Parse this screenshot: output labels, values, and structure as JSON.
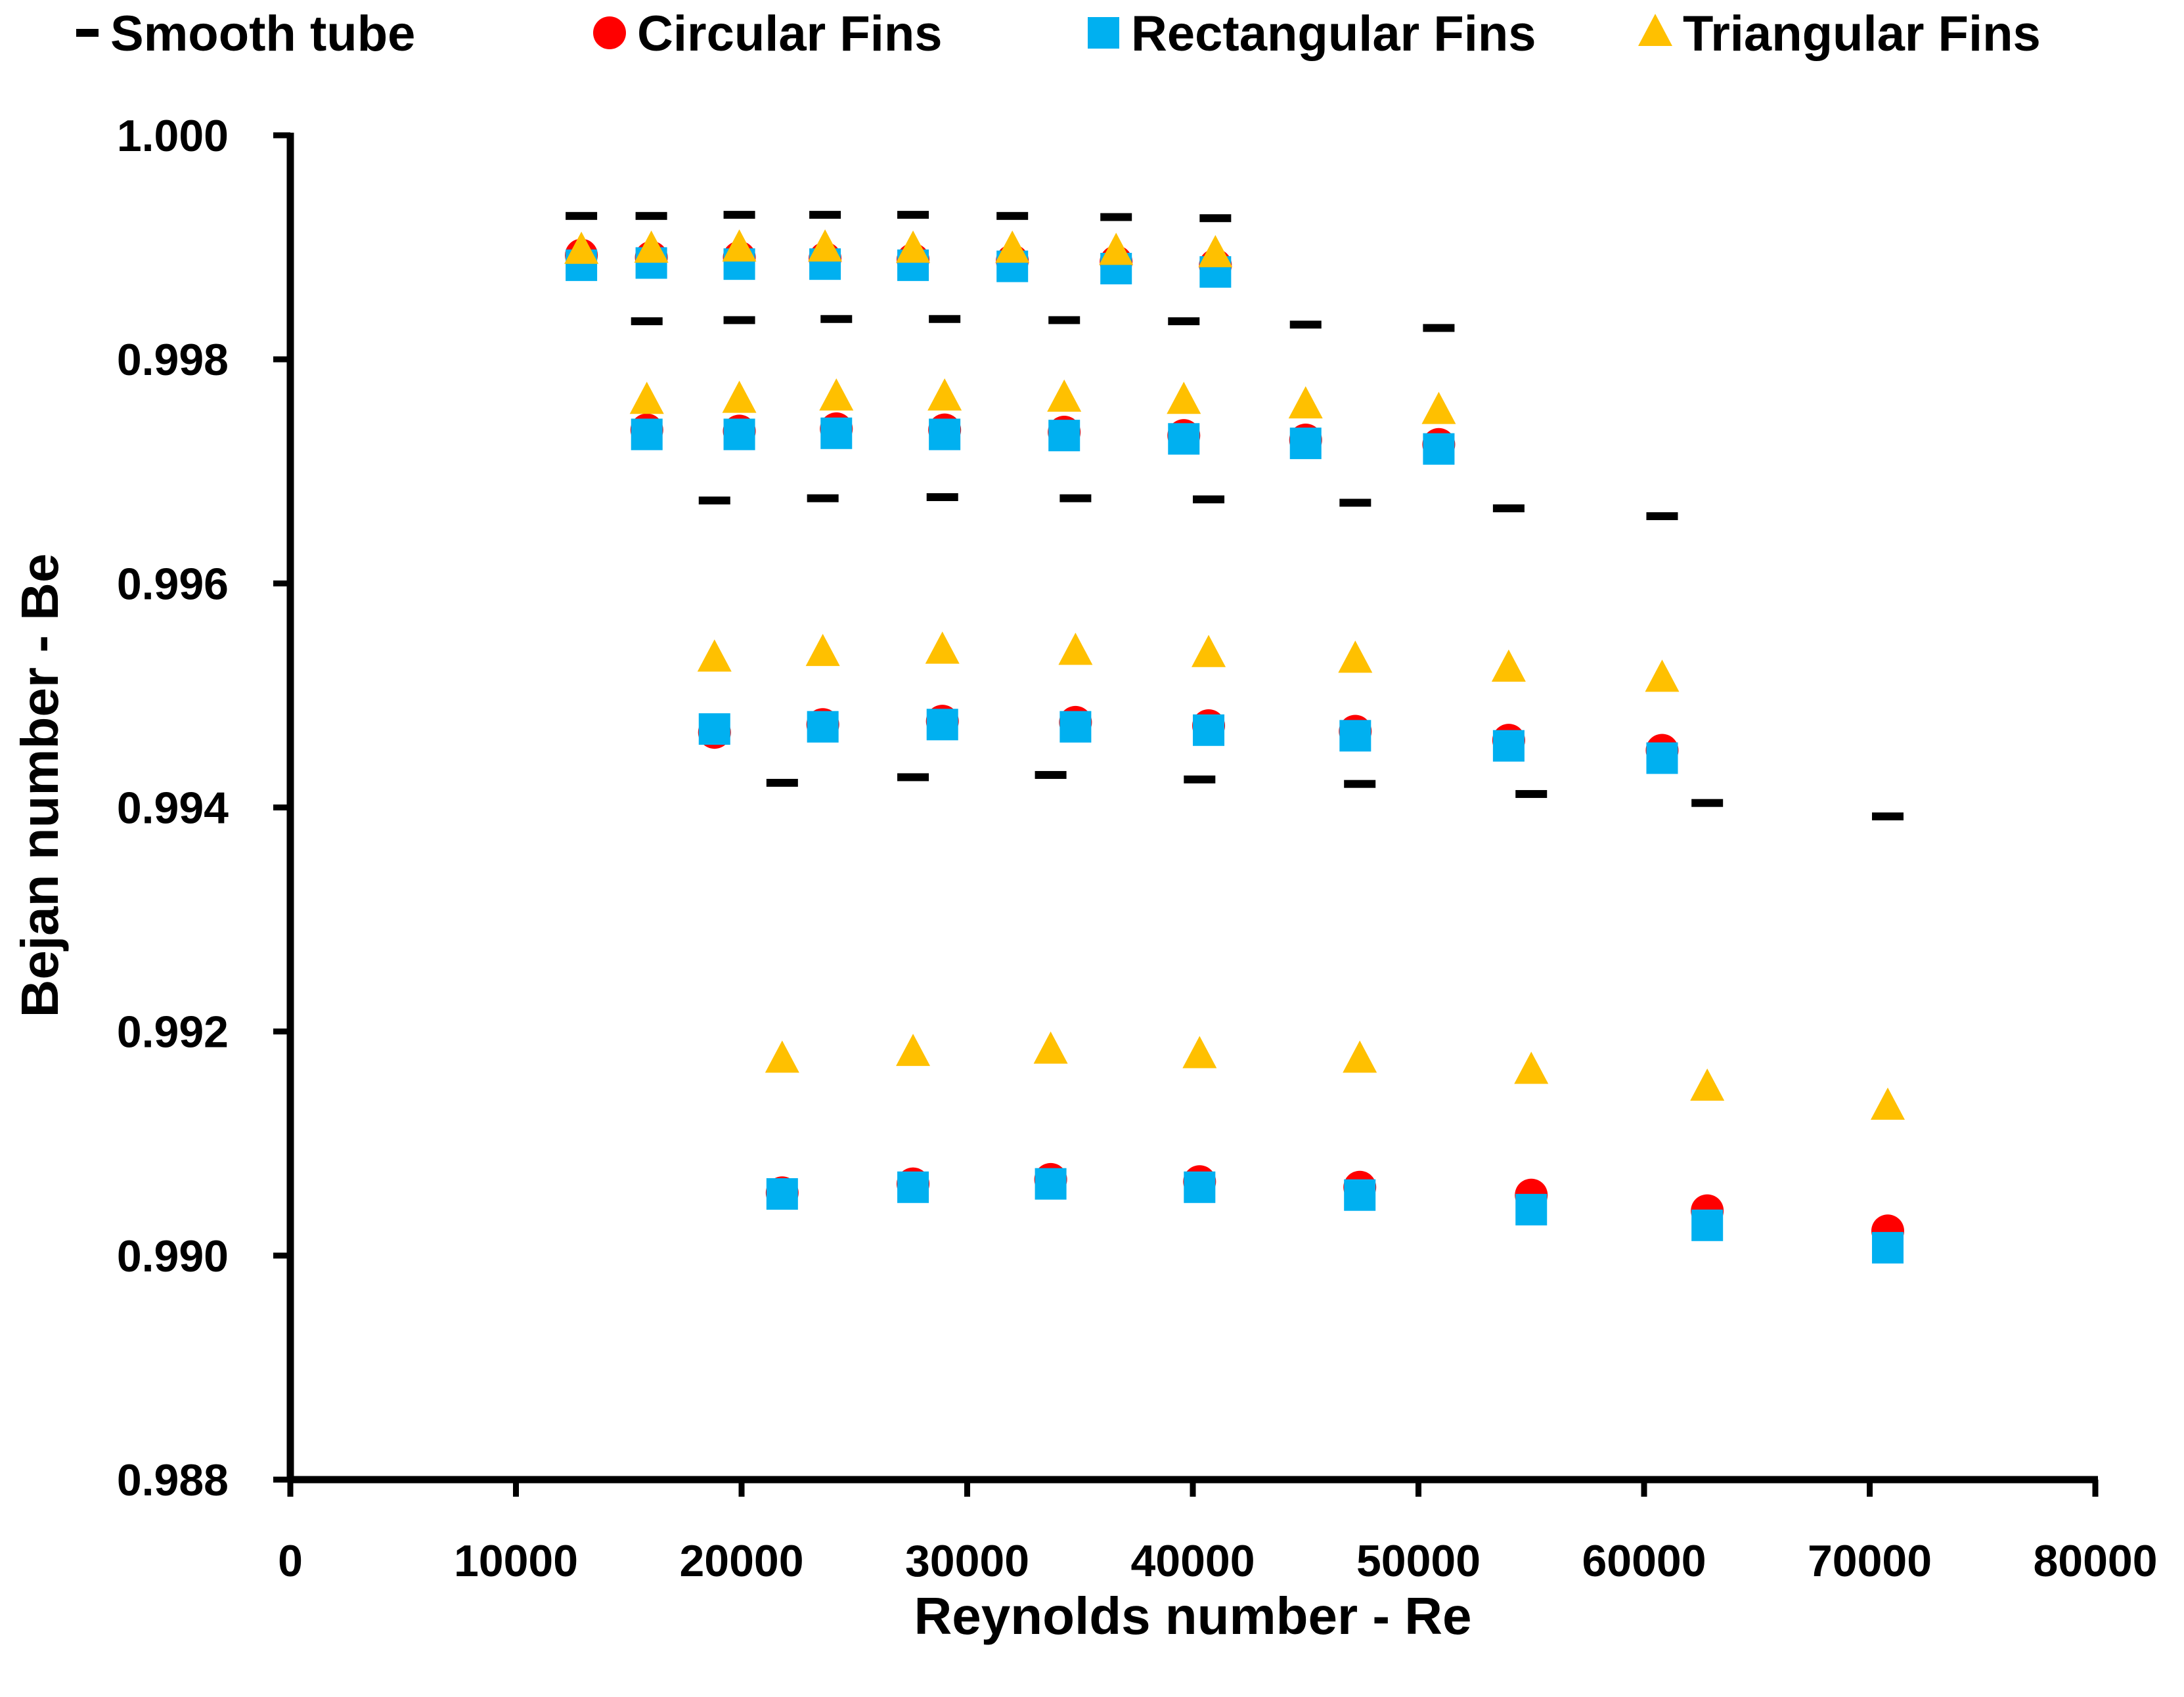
{
  "chart_data": {
    "type": "scatter",
    "title": "",
    "xlabel": "Reynolds number - Re",
    "ylabel": "Bejan number - Be",
    "xlim": [
      0,
      80000
    ],
    "ylim": [
      0.988,
      1.0
    ],
    "xticks": [
      0,
      10000,
      20000,
      30000,
      40000,
      50000,
      60000,
      70000,
      80000
    ],
    "xtick_labels": [
      "0",
      "10000",
      "20000",
      "30000",
      "40000",
      "50000",
      "60000",
      "70000",
      "80000"
    ],
    "yticks": [
      0.988,
      0.99,
      0.992,
      0.994,
      0.996,
      0.998,
      1.0
    ],
    "ytick_labels": [
      "0.988",
      "0.990",
      "0.992",
      "0.994",
      "0.996",
      "0.998",
      "1.000"
    ],
    "grid": false,
    "legend_position": "top",
    "series": [
      {
        "name": "Smooth tube",
        "marker": "dash",
        "color": "#000000",
        "x": [
          12900,
          16000,
          19900,
          23700,
          27600,
          32000,
          36600,
          41000,
          15800,
          19900,
          24200,
          29000,
          34300,
          39600,
          45000,
          50900,
          18800,
          23600,
          28900,
          34800,
          40700,
          47200,
          54000,
          60800,
          21800,
          27600,
          33700,
          40300,
          47400,
          55000,
          62800,
          70800
        ],
        "y": [
          0.99928,
          0.99928,
          0.99929,
          0.99929,
          0.99929,
          0.99928,
          0.99927,
          0.99926,
          0.99834,
          0.99835,
          0.99836,
          0.99836,
          0.99835,
          0.99834,
          0.99831,
          0.99828,
          0.99674,
          0.99676,
          0.99677,
          0.99676,
          0.99675,
          0.99672,
          0.99667,
          0.9966,
          0.99422,
          0.99427,
          0.99429,
          0.99425,
          0.99421,
          0.99412,
          0.99404,
          0.99392
        ]
      },
      {
        "name": "Circular Fins",
        "marker": "circle",
        "color": "#ff0000",
        "x": [
          12900,
          16000,
          19900,
          23700,
          27600,
          32000,
          36600,
          41000,
          15800,
          19900,
          24200,
          29000,
          34300,
          39600,
          45000,
          50900,
          18800,
          23600,
          28900,
          34800,
          40700,
          47200,
          54000,
          60800,
          21800,
          27600,
          33700,
          40300,
          47400,
          55000,
          62800,
          70800
        ],
        "y": [
          0.99893,
          0.99891,
          0.99891,
          0.9989,
          0.99889,
          0.99888,
          0.99887,
          0.99884,
          0.99737,
          0.99736,
          0.99738,
          0.99737,
          0.99735,
          0.99732,
          0.99728,
          0.99724,
          0.99467,
          0.99474,
          0.99477,
          0.99476,
          0.99473,
          0.99468,
          0.9946,
          0.99451,
          0.99056,
          0.99064,
          0.99068,
          0.99066,
          0.99061,
          0.99054,
          0.9904,
          0.99022
        ]
      },
      {
        "name": "Rectangular Fins",
        "marker": "square",
        "color": "#00b0f0",
        "x": [
          12900,
          16000,
          19900,
          23700,
          27600,
          32000,
          36600,
          41000,
          15800,
          19900,
          24200,
          29000,
          34300,
          39600,
          45000,
          50900,
          18800,
          23600,
          28900,
          34800,
          40700,
          47200,
          54000,
          60800,
          21800,
          27600,
          33700,
          40300,
          47400,
          55000,
          62800,
          70800
        ],
        "y": [
          0.99884,
          0.99886,
          0.99885,
          0.99885,
          0.99884,
          0.99883,
          0.99881,
          0.99878,
          0.99733,
          0.99733,
          0.99734,
          0.99733,
          0.99732,
          0.99729,
          0.99725,
          0.9972,
          0.9947,
          0.99472,
          0.99474,
          0.99472,
          0.99469,
          0.99464,
          0.99455,
          0.99444,
          0.99055,
          0.99061,
          0.99064,
          0.99061,
          0.99054,
          0.99041,
          0.99027,
          0.99007
        ]
      },
      {
        "name": "Triangular Fins",
        "marker": "triangle",
        "color": "#ffc000",
        "x": [
          12900,
          16000,
          19900,
          23700,
          27600,
          32000,
          36600,
          41000,
          15800,
          19900,
          24200,
          29000,
          34300,
          39600,
          45000,
          50900,
          18800,
          23600,
          28900,
          34800,
          40700,
          47200,
          54000,
          60800,
          21800,
          27600,
          33700,
          40300,
          47400,
          55000,
          62800,
          70800
        ],
        "y": [
          0.99897,
          0.99898,
          0.99899,
          0.99899,
          0.99898,
          0.99898,
          0.99896,
          0.99894,
          0.99763,
          0.99764,
          0.99766,
          0.99766,
          0.99765,
          0.99763,
          0.99759,
          0.99754,
          0.99533,
          0.99538,
          0.9954,
          0.99539,
          0.99537,
          0.99532,
          0.99524,
          0.99515,
          0.99175,
          0.99181,
          0.99183,
          0.99179,
          0.99175,
          0.99165,
          0.9915,
          0.99133
        ]
      }
    ]
  }
}
